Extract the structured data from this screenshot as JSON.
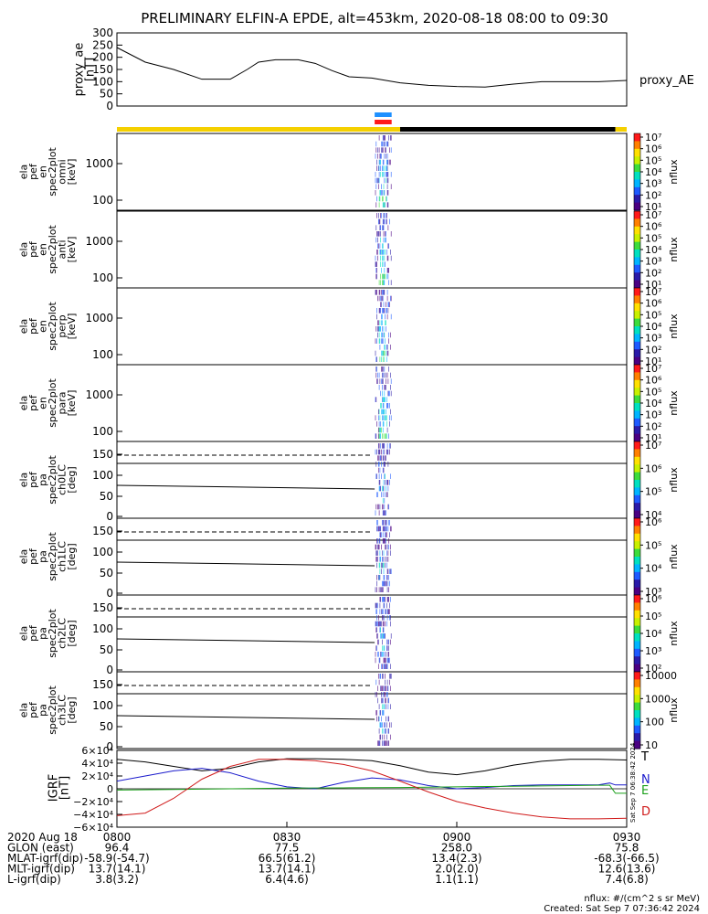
{
  "title": "PRELIMINARY ELFIN-A EPDE, alt=453km, 2020-08-18 08:00 to 09:30",
  "chart_data": {
    "type": "heatmap",
    "time_ticks": [
      "0800",
      "0830",
      "0900",
      "0930"
    ],
    "time_range_minutes": [
      0,
      90
    ],
    "proxy_ae": {
      "ylabel": [
        "proxy_ae",
        "[nT]"
      ],
      "yticks": [
        "300",
        "250",
        "200",
        "150",
        "100",
        "50",
        "0"
      ],
      "ylim": [
        0,
        300
      ],
      "legend": "proxy_AE",
      "t": [
        0,
        5,
        10,
        15,
        20,
        23,
        25,
        28,
        32,
        35,
        38,
        41,
        45,
        50,
        55,
        60,
        65,
        70,
        75,
        80,
        85,
        90
      ],
      "values": [
        240,
        180,
        150,
        110,
        110,
        150,
        180,
        190,
        190,
        175,
        145,
        120,
        115,
        95,
        85,
        80,
        78,
        90,
        100,
        100,
        100,
        105
      ]
    },
    "status_bars": {
      "main": [
        {
          "start": 0,
          "end": 50,
          "color": "#f5d000"
        },
        {
          "start": 50,
          "end": 88,
          "color": "#000000"
        },
        {
          "start": 88,
          "end": 90,
          "color": "#f5d000"
        }
      ],
      "blue": {
        "start": 45.5,
        "end": 48.5,
        "color": "#1e90ff"
      },
      "red": {
        "start": 45.5,
        "end": 48.5,
        "color": "#ff1a1a"
      }
    },
    "energy_panels": [
      {
        "ylabel": [
          "ela",
          "pef",
          "en",
          "spec2plot",
          "omni",
          "[keV]"
        ],
        "cb_label": "nflux",
        "cb_ticks": [
          "10⁷",
          "10⁶",
          "10⁵",
          "10⁴",
          "10³",
          "10²",
          "10¹"
        ],
        "yticks": [
          "1000",
          "100"
        ]
      },
      {
        "ylabel": [
          "ela",
          "pef",
          "en",
          "spec2plot",
          "anti",
          "[keV]"
        ],
        "cb_label": "nflux",
        "cb_ticks": [
          "10⁷",
          "10⁶",
          "10⁵",
          "10⁴",
          "10³",
          "10²",
          "10¹"
        ],
        "yticks": [
          "1000",
          "100"
        ]
      },
      {
        "ylabel": [
          "ela",
          "pef",
          "en",
          "spec2plot",
          "perp",
          "[keV]"
        ],
        "cb_label": "nflux",
        "cb_ticks": [
          "10⁷",
          "10⁶",
          "10⁵",
          "10⁴",
          "10³",
          "10²",
          "10¹"
        ],
        "yticks": [
          "1000",
          "100"
        ]
      },
      {
        "ylabel": [
          "ela",
          "pef",
          "en",
          "spec2plot",
          "para",
          "[keV]"
        ],
        "cb_label": "nflux",
        "cb_ticks": [
          "10⁷",
          "10⁶",
          "10⁵",
          "10⁴",
          "10³",
          "10²",
          "10¹"
        ],
        "yticks": [
          "1000",
          "100"
        ]
      }
    ],
    "pitch_panels": [
      {
        "ylabel": [
          "ela",
          "pef",
          "pa",
          "spec2plot",
          "ch0LC",
          "[deg]"
        ],
        "cb_label": "nflux",
        "cb_ticks": [
          "10⁷",
          "10⁶",
          "10⁵",
          "10⁴"
        ],
        "yticks": [
          "150",
          "100",
          "50",
          "0"
        ]
      },
      {
        "ylabel": [
          "ela",
          "pef",
          "pa",
          "spec2plot",
          "ch1LC",
          "[deg]"
        ],
        "cb_label": "nflux",
        "cb_ticks": [
          "10⁶",
          "10⁵",
          "10⁴",
          "10³"
        ],
        "yticks": [
          "150",
          "100",
          "50",
          "0"
        ]
      },
      {
        "ylabel": [
          "ela",
          "pef",
          "pa",
          "spec2plot",
          "ch2LC",
          "[deg]"
        ],
        "cb_label": "nflux",
        "cb_ticks": [
          "10⁶",
          "10⁵",
          "10⁴",
          "10³",
          "10²"
        ],
        "yticks": [
          "150",
          "100",
          "50",
          "0"
        ]
      },
      {
        "ylabel": [
          "ela",
          "pef",
          "pa",
          "spec2plot",
          "ch3LC",
          "[deg]"
        ],
        "cb_label": "nflux",
        "cb_ticks": [
          "10000",
          "1000",
          "100",
          "10"
        ],
        "yticks": [
          "150",
          "100",
          "50",
          "0"
        ]
      }
    ],
    "igrf": {
      "ylabel": [
        "IGRF",
        "[nT]"
      ],
      "yticks": [
        "6×10⁴",
        "4×10⁴",
        "2×10⁴",
        "0",
        "−2×10⁴",
        "−4×10⁴",
        "−6×10⁴"
      ],
      "ylim": [
        -60000,
        60000
      ],
      "series": [
        {
          "name": "T",
          "color": "#000000",
          "t": [
            0,
            5,
            10,
            15,
            20,
            25,
            30,
            35,
            40,
            45,
            50,
            55,
            60,
            65,
            70,
            75,
            80,
            85,
            90
          ],
          "values": [
            46000,
            42000,
            35000,
            28000,
            32000,
            42000,
            47000,
            47000,
            46000,
            44000,
            36000,
            26000,
            22000,
            28000,
            37000,
            43000,
            46000,
            46000,
            45000
          ]
        },
        {
          "name": "N",
          "color": "#1a1acc",
          "t": [
            0,
            5,
            10,
            15,
            20,
            25,
            30,
            35,
            40,
            45,
            50,
            55,
            60,
            65,
            70,
            75,
            80,
            85,
            87,
            88,
            90
          ],
          "values": [
            12000,
            20000,
            28000,
            32000,
            25000,
            12000,
            3000,
            0,
            10000,
            17000,
            14000,
            5000,
            0,
            2000,
            5000,
            6000,
            6000,
            6000,
            9000,
            6000,
            6000
          ]
        },
        {
          "name": "E",
          "color": "#1aa01a",
          "t": [
            0,
            10,
            20,
            30,
            40,
            50,
            60,
            70,
            80,
            85,
            87,
            88,
            90
          ],
          "values": [
            -2000,
            -1000,
            0,
            1000,
            1500,
            2000,
            3000,
            4000,
            5000,
            5500,
            5500,
            -7000,
            -7000
          ]
        },
        {
          "name": "D",
          "color": "#d01a1a",
          "t": [
            0,
            5,
            10,
            15,
            20,
            25,
            30,
            35,
            40,
            45,
            50,
            55,
            60,
            65,
            70,
            75,
            80,
            85,
            90
          ],
          "values": [
            -42000,
            -38000,
            -15000,
            15000,
            35000,
            46000,
            46000,
            44000,
            38000,
            28000,
            12000,
            -5000,
            -20000,
            -30000,
            -38000,
            -44000,
            -47000,
            -47000,
            -46000
          ]
        }
      ]
    }
  },
  "footer": {
    "rows": [
      {
        "label": "2020 Aug 18",
        "values": [
          "0800",
          "0830",
          "0900",
          "0930"
        ]
      },
      {
        "label": "GLON (east)",
        "values": [
          "96.4",
          "77.5",
          "258.0",
          "75.8"
        ]
      },
      {
        "label": "MLAT-igrf(dip)",
        "values": [
          "-58.9(-54.7)",
          "66.5(61.2)",
          "13.4(2.3)",
          "-68.3(-66.5)"
        ]
      },
      {
        "label": "MLT-igrf(dip)",
        "values": [
          "13.7(14.1)",
          "13.7(14.1)",
          "2.0(2.0)",
          "12.6(13.6)"
        ]
      },
      {
        "label": "L-igrf(dip)",
        "values": [
          "3.8(3.2)",
          "6.4(4.6)",
          "1.1(1.1)",
          "7.4(6.8)"
        ]
      }
    ],
    "nflux_units": "nflux: #/(cm^2 s sr MeV)",
    "created": "Created: Sat Sep  7 07:36:42 2024",
    "side_stamp": "Sat Sep  7 06:38:42 2024"
  }
}
